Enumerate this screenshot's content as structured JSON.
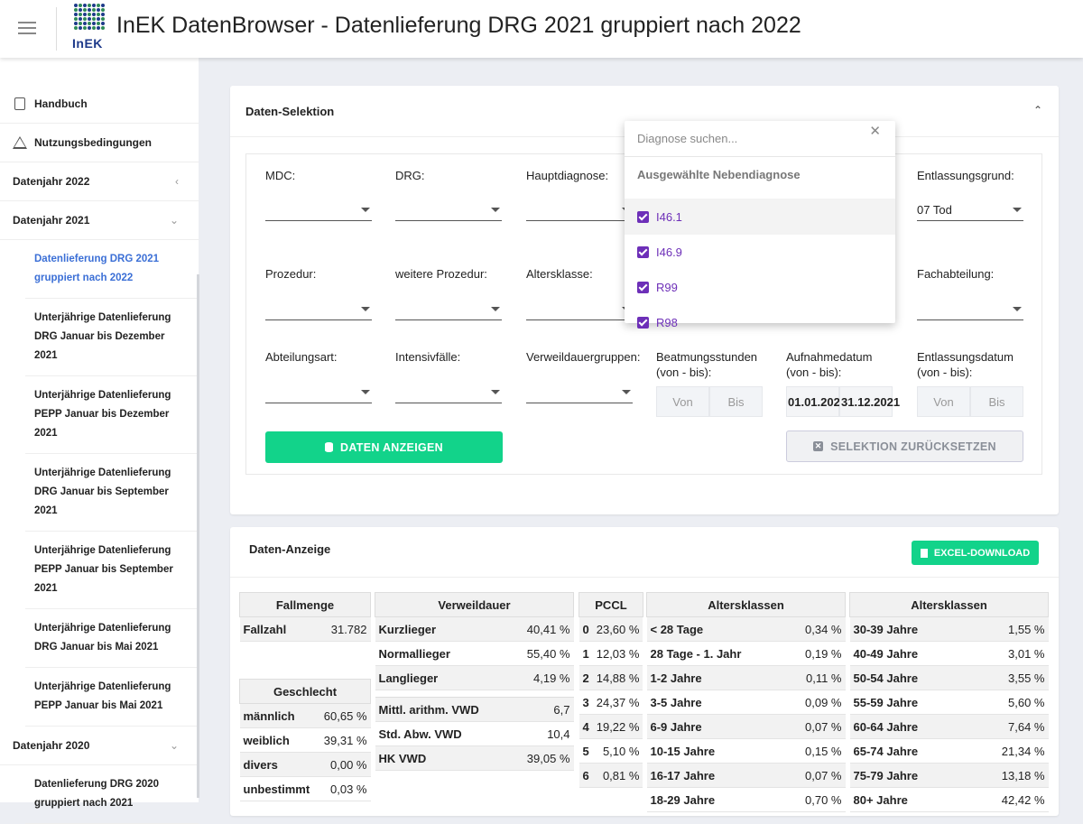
{
  "header": {
    "title": "InEK DatenBrowser - Datenlieferung DRG 2021 gruppiert nach 2022",
    "logo_text": "InEK"
  },
  "sidebar": {
    "top_items": [
      {
        "label": "Handbuch",
        "icon": "book-icon"
      },
      {
        "label": "Nutzungsbedingungen",
        "icon": "warning-icon"
      }
    ],
    "year_2022": "Datenjahr 2022",
    "year_2021": "Datenjahr 2021",
    "year_2020": "Datenjahr 2020",
    "sub_2021": [
      "Datenlieferung DRG 2021 gruppiert nach 2022",
      "Unterjährige Datenlieferung DRG Januar bis Dezember 2021",
      "Unterjährige Datenlieferung PEPP Januar bis Dezember 2021",
      "Unterjährige Datenlieferung DRG Januar bis September 2021",
      "Unterjährige Datenlieferung PEPP Januar bis September 2021",
      "Unterjährige Datenlieferung DRG Januar bis Mai 2021",
      "Unterjährige Datenlieferung PEPP Januar bis Mai 2021"
    ],
    "sub_2020": [
      "Datenlieferung DRG 2020 gruppiert nach 2021"
    ]
  },
  "selection": {
    "title": "Daten-Selektion",
    "labels": {
      "mdc": "MDC:",
      "drg": "DRG:",
      "hauptdiagnose": "Hauptdiagnose:",
      "entlassungsgrund": "Entlassungsgrund:",
      "prozedur": "Prozedur:",
      "weitere_prozedur": "weitere Prozedur:",
      "altersklasse": "Altersklasse:",
      "fachabteilung": "Fachabteilung:",
      "abteilungsart": "Abteilungsart:",
      "intensivfaelle": "Intensivfälle:",
      "verweildauergruppen": "Verweildauergruppen:",
      "beatmung_1": "Beatmungsstunden",
      "beatmung_2": "(von - bis):",
      "aufnahme_1": "Aufnahmedatum",
      "aufnahme_2": "(von - bis):",
      "entlassung_1": "Entlassungsdatum",
      "entlassung_2": "(von - bis):"
    },
    "entlassungsgrund_value": "07 Tod",
    "von": "Von",
    "bis": "Bis",
    "aufnahme_von": "01.01.2021",
    "aufnahme_bis": "31.12.2021",
    "btn_show": "DATEN ANZEIGEN",
    "btn_reset": "SELEKTION ZURÜCKSETZEN"
  },
  "dropdown": {
    "search_placeholder": "Diagnose suchen...",
    "close": "✕",
    "header": "Ausgewählte Nebendiagnose",
    "items": [
      "I46.1",
      "I46.9",
      "R99",
      "R98"
    ]
  },
  "display": {
    "title": "Daten-Anzeige",
    "excel": "EXCEL-DOWNLOAD",
    "fallmenge": {
      "header": "Fallmenge",
      "label": "Fallzahl",
      "value": "31.782"
    },
    "geschlecht": {
      "header": "Geschlecht",
      "rows": [
        [
          "männlich",
          "60,65 %"
        ],
        [
          "weiblich",
          "39,31 %"
        ],
        [
          "divers",
          "0,00 %"
        ],
        [
          "unbestimmt",
          "0,03 %"
        ]
      ]
    },
    "verweildauer": {
      "header": "Verweildauer",
      "rows": [
        [
          "Kurzlieger",
          "40,41 %"
        ],
        [
          "Normallieger",
          "55,40 %"
        ],
        [
          "Langlieger",
          "4,19 %"
        ]
      ],
      "rows2": [
        [
          "Mittl. arithm. VWD",
          "6,7"
        ],
        [
          "Std. Abw. VWD",
          "10,4"
        ],
        [
          "HK VWD",
          "39,05 %"
        ]
      ]
    },
    "pccl": {
      "header": "PCCL",
      "rows": [
        [
          "0",
          "23,60 %"
        ],
        [
          "1",
          "12,03 %"
        ],
        [
          "2",
          "14,88 %"
        ],
        [
          "3",
          "24,37 %"
        ],
        [
          "4",
          "19,22 %"
        ],
        [
          "5",
          "5,10 %"
        ],
        [
          "6",
          "0,81 %"
        ]
      ]
    },
    "alter1": {
      "header": "Altersklassen",
      "rows": [
        [
          "< 28 Tage",
          "0,34 %"
        ],
        [
          "28 Tage - 1. Jahr",
          "0,19 %"
        ],
        [
          "1-2 Jahre",
          "0,11 %"
        ],
        [
          "3-5 Jahre",
          "0,09 %"
        ],
        [
          "6-9 Jahre",
          "0,07 %"
        ],
        [
          "10-15 Jahre",
          "0,15 %"
        ],
        [
          "16-17 Jahre",
          "0,07 %"
        ],
        [
          "18-29 Jahre",
          "0,70 %"
        ]
      ]
    },
    "alter2": {
      "header": "Altersklassen",
      "rows": [
        [
          "30-39 Jahre",
          "1,55 %"
        ],
        [
          "40-49 Jahre",
          "3,01 %"
        ],
        [
          "50-54 Jahre",
          "3,55 %"
        ],
        [
          "55-59 Jahre",
          "5,60 %"
        ],
        [
          "60-64 Jahre",
          "7,64 %"
        ],
        [
          "65-74 Jahre",
          "21,34 %"
        ],
        [
          "75-79 Jahre",
          "13,18 %"
        ],
        [
          "80+ Jahre",
          "42,42 %"
        ]
      ]
    }
  }
}
